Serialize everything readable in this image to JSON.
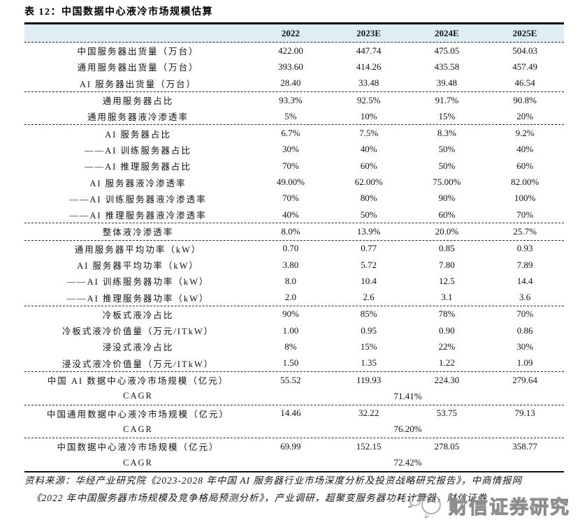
{
  "title": "表 12：中国数据中心液冷市场规模估算",
  "table": {
    "columns": [
      "2022",
      "2023E",
      "2024E",
      "2025E"
    ],
    "sections": [
      {
        "rows": [
          {
            "label": "中国服务器出货量（万台）",
            "values": [
              "422.00",
              "447.74",
              "475.05",
              "504.03"
            ]
          },
          {
            "label": "通用服务器出货量（万台）",
            "values": [
              "393.60",
              "414.26",
              "435.58",
              "457.49"
            ]
          },
          {
            "label": "AI 服务器出货量（万台）",
            "values": [
              "28.40",
              "33.48",
              "39.48",
              "46.54"
            ]
          }
        ]
      },
      {
        "rows": [
          {
            "label": "通用服务器占比",
            "values": [
              "93.3%",
              "92.5%",
              "91.7%",
              "90.8%"
            ]
          },
          {
            "label": "通用服务器液冷渗透率",
            "values": [
              "5%",
              "10%",
              "15%",
              "20%"
            ]
          }
        ]
      },
      {
        "rows": [
          {
            "label": "AI 服务器占比",
            "values": [
              "6.7%",
              "7.5%",
              "8.3%",
              "9.2%"
            ]
          },
          {
            "label": "——AI 训练服务器占比",
            "values": [
              "30%",
              "40%",
              "50%",
              "40%"
            ]
          },
          {
            "label": "——AI 推理服务器占比",
            "values": [
              "70%",
              "60%",
              "50%",
              "60%"
            ]
          },
          {
            "label": "AI 服务器液冷渗透率",
            "values": [
              "49.00%",
              "62.00%",
              "75.00%",
              "82.00%"
            ]
          },
          {
            "label": "——AI 训练服务器液冷渗透率",
            "values": [
              "70%",
              "80%",
              "90%",
              "100%"
            ]
          },
          {
            "label": "——AI 推理服务器液冷渗透率",
            "values": [
              "40%",
              "50%",
              "60%",
              "70%"
            ]
          }
        ]
      },
      {
        "rows": [
          {
            "label": "整体液冷渗透率",
            "values": [
              "8.0%",
              "13.9%",
              "20.0%",
              "25.7%"
            ]
          }
        ]
      },
      {
        "rows": [
          {
            "label": "通用服务器平均功率（kW）",
            "values": [
              "0.70",
              "0.77",
              "0.85",
              "0.93"
            ]
          },
          {
            "label": "AI 服务器平均功率（kW）",
            "values": [
              "3.80",
              "5.72",
              "7.80",
              "7.89"
            ]
          },
          {
            "label": "——AI 训练服务器功率（kW）",
            "values": [
              "8.0",
              "10.4",
              "12.5",
              "14.4"
            ]
          },
          {
            "label": "——AI 推理服务器功率（kW）",
            "values": [
              "2.0",
              "2.6",
              "3.1",
              "3.6"
            ]
          }
        ]
      },
      {
        "rows": [
          {
            "label": "冷板式液冷占比",
            "values": [
              "90%",
              "85%",
              "78%",
              "70%"
            ]
          },
          {
            "label": "冷板式液冷价值量（万元/ITkW）",
            "values": [
              "1.00",
              "0.95",
              "0.90",
              "0.86"
            ]
          },
          {
            "label": "浸没式液冷占比",
            "values": [
              "8%",
              "15%",
              "22%",
              "30%"
            ]
          },
          {
            "label": "浸没式液冷价值量（万元/ITkW）",
            "values": [
              "1.50",
              "1.35",
              "1.22",
              "1.09"
            ]
          }
        ]
      },
      {
        "rows": [
          {
            "label": "中国 AI 数据中心液冷市场规模（亿元）",
            "values": [
              "55.52",
              "119.93",
              "224.30",
              "279.64"
            ]
          },
          {
            "label": "CAGR",
            "span_value": "71.41%"
          }
        ]
      },
      {
        "rows": [
          {
            "label": "中国通用数据中心液冷市场规模（亿元）",
            "values": [
              "14.46",
              "32.22",
              "53.75",
              "79.13"
            ]
          },
          {
            "label": "CAGR",
            "span_value": "76.20%"
          }
        ]
      },
      {
        "rows": [
          {
            "label": "中国数据中心液冷市场规模（亿元）",
            "values": [
              "69.99",
              "152.15",
              "278.05",
              "358.77"
            ]
          },
          {
            "label": "CAGR",
            "span_value": "72.42%"
          }
        ]
      }
    ]
  },
  "footer": {
    "line1": "资料来源：华经产业研究院《2023-2028 年中国 AI 服务器行业市场深度分析及投资战略研究报告》，中商情报网",
    "line2": "《2022 年中国服务器市场规模及竞争格局预测分析》，产业调研，超聚变服务器功耗计算器，财信证券"
  },
  "watermark": {
    "text": "财信证券研究",
    "icon": "wechat-icon"
  },
  "colors": {
    "header_bg": "#dfeef3",
    "border": "#0a0a0a",
    "watermark": "#8d8d8d"
  }
}
